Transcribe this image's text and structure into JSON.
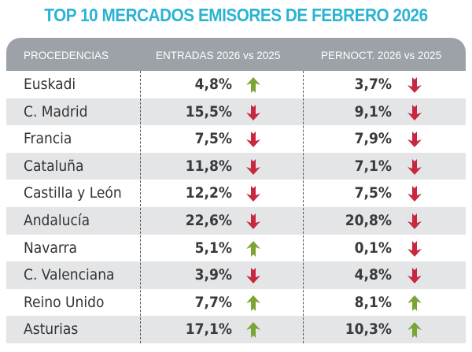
{
  "title": "TOP 10 MERCADOS EMISORES DE FEBRERO 2026",
  "colors": {
    "up": "#7aa536",
    "down": "#c8283f",
    "title": "#2bb3d4",
    "header": "#9da2a8"
  },
  "headers": [
    "PROCEDENCIAS",
    "ENTRADAS 2026 vs 2025",
    "PERNOCT. 2026 vs 2025"
  ],
  "rows": [
    {
      "name": "Euskadi",
      "entradas": "4,8%",
      "entradas_trend": "up",
      "pernoct": "3,7%",
      "pernoct_trend": "down"
    },
    {
      "name": "C. Madrid",
      "entradas": "15,5%",
      "entradas_trend": "down",
      "pernoct": "9,1%",
      "pernoct_trend": "down"
    },
    {
      "name": "Francia",
      "entradas": "7,5%",
      "entradas_trend": "down",
      "pernoct": "7,9%",
      "pernoct_trend": "down"
    },
    {
      "name": "Cataluña",
      "entradas": "11,8%",
      "entradas_trend": "down",
      "pernoct": "7,1%",
      "pernoct_trend": "down"
    },
    {
      "name": "Castilla y León",
      "entradas": "12,2%",
      "entradas_trend": "down",
      "pernoct": "7,5%",
      "pernoct_trend": "down"
    },
    {
      "name": "Andalucía",
      "entradas": "22,6%",
      "entradas_trend": "down",
      "pernoct": "20,8%",
      "pernoct_trend": "down"
    },
    {
      "name": "Navarra",
      "entradas": "5,1%",
      "entradas_trend": "up",
      "pernoct": "0,1%",
      "pernoct_trend": "down"
    },
    {
      "name": "C. Valenciana",
      "entradas": "3,9%",
      "entradas_trend": "down",
      "pernoct": "4,8%",
      "pernoct_trend": "down"
    },
    {
      "name": "Reino Unido",
      "entradas": "7,7%",
      "entradas_trend": "up",
      "pernoct": "8,1%",
      "pernoct_trend": "up"
    },
    {
      "name": "Asturias",
      "entradas": "17,1%",
      "entradas_trend": "up",
      "pernoct": "10,3%",
      "pernoct_trend": "up"
    }
  ]
}
